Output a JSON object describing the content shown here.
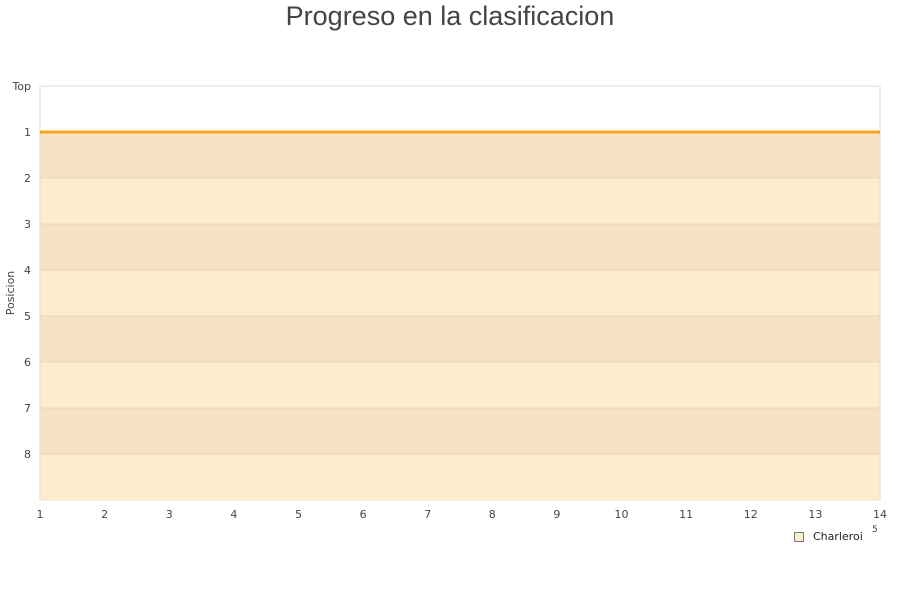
{
  "title": "Progreso en la clasificacion",
  "chart_data": {
    "type": "line",
    "title": "Progreso en la clasificacion",
    "ylabel": "Posicion",
    "xlabel": "",
    "x": [
      1,
      2,
      3,
      4,
      5,
      6,
      7,
      8,
      9,
      10,
      11,
      12,
      13,
      14
    ],
    "x_ticks": [
      "1",
      "2",
      "3",
      "4",
      "5",
      "6",
      "7",
      "8",
      "9",
      "10",
      "11",
      "12",
      "13",
      "14"
    ],
    "y_ticks": [
      "Top",
      "1",
      "2",
      "3",
      "4",
      "5",
      "6",
      "7",
      "8"
    ],
    "y_inverted": true,
    "ylim": [
      0,
      9
    ],
    "xlim": [
      1,
      14
    ],
    "series": [
      {
        "name": "Charleroi",
        "values": [
          1,
          1,
          1,
          1,
          1,
          1,
          1,
          1,
          1,
          1,
          1,
          1,
          1,
          1
        ],
        "color": "#f5a623"
      }
    ],
    "band_colors": [
      "#f5e3c3",
      "#feedcc"
    ],
    "legend_position": "bottom-right",
    "stray_label": "5"
  }
}
